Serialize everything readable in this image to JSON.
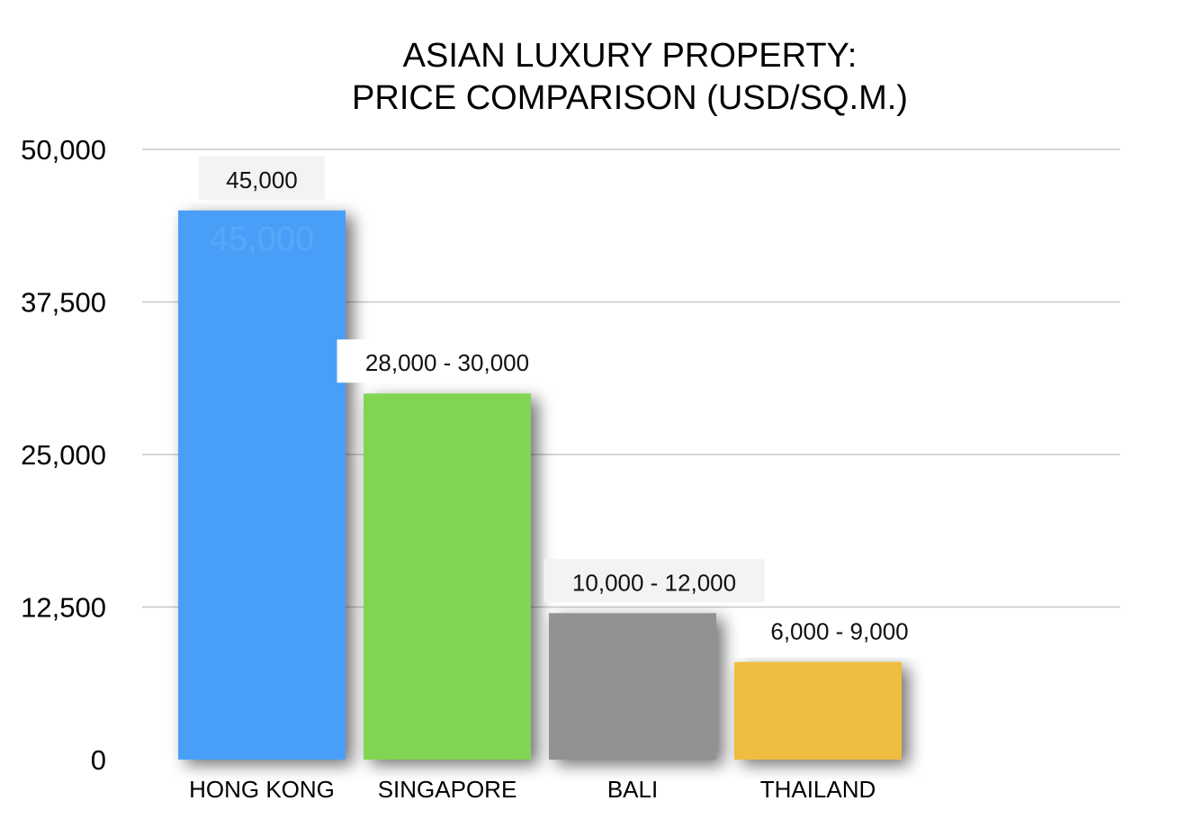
{
  "chart_data": {
    "type": "bar",
    "title": "ASIAN LUXURY PROPERTY:",
    "subtitle": "PRICE COMPARISON (USD/SQ.M.)",
    "xlabel": "",
    "ylabel": "",
    "ylim": [
      0,
      50000
    ],
    "yticks": [
      0,
      12500,
      25000,
      37500,
      50000
    ],
    "ytick_labels": [
      "0",
      "12,500",
      "25,000",
      "37,500",
      "50,000"
    ],
    "grid": true,
    "legend": "none",
    "categories": [
      "HONG KONG",
      "SINGAPORE",
      "BALI",
      "THAILAND"
    ],
    "values": [
      45000,
      30000,
      12000,
      8000
    ],
    "data_labels": [
      "45,000",
      "28,000 - 30,000",
      "10,000 - 12,000",
      "6,000 - 9,000"
    ],
    "inner_labels": [
      "45,000",
      "",
      "",
      ""
    ],
    "colors": [
      "#4a9ff8",
      "#82d552",
      "#929292",
      "#efbd3f"
    ],
    "inner_label_color": "#57a8fa",
    "label_box_colors": [
      "#f3f3f3",
      "#ffffff",
      "#f3f3f3",
      "#ffffff"
    ],
    "grid_color": "#c8c8c8"
  }
}
